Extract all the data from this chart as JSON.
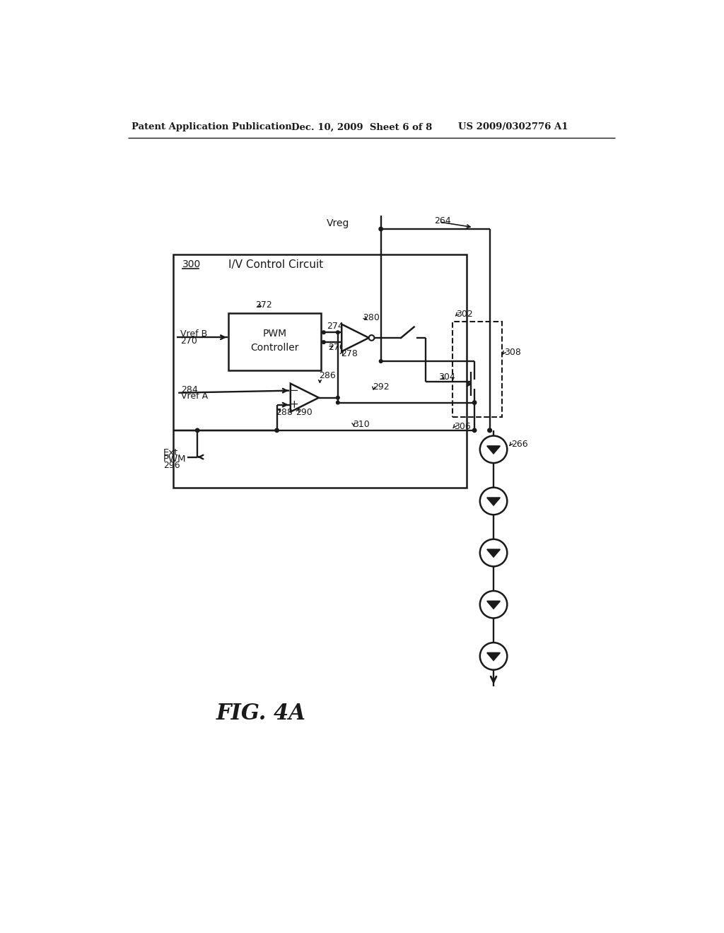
{
  "bg_color": "#ffffff",
  "line_color": "#1a1a1a",
  "header_left": "Patent Application Publication",
  "header_mid": "Dec. 10, 2009  Sheet 6 of 8",
  "header_right": "US 2009/0302776 A1",
  "fig_label": "FIG. 4A"
}
